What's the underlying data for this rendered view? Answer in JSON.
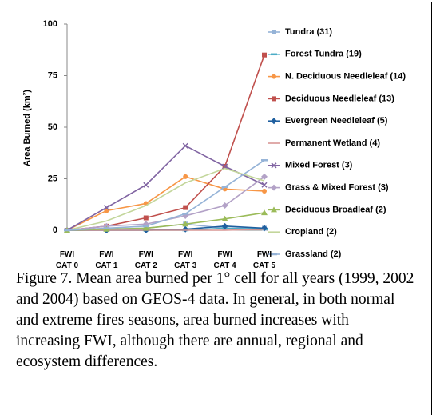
{
  "chart_data": {
    "type": "line",
    "y_label": "Area Burned (km²)",
    "categories": [
      "FWI\nCAT 0",
      "FWI\nCAT 1",
      "FWI\nCAT 2",
      "FWI\nCAT 3",
      "FWI\nCAT 4",
      "FWI\nCAT 5"
    ],
    "ylim": [
      0,
      100
    ],
    "yticks": [
      0,
      25,
      50,
      75,
      100
    ],
    "grid": false,
    "series": [
      {
        "name": "Tundra (31)",
        "color": "#95b3d7",
        "marker": "square",
        "values": [
          0,
          0.5,
          1,
          3,
          1,
          1
        ]
      },
      {
        "name": "Forest Tundra (19)",
        "color": "#4bacc6",
        "marker": "dash",
        "values": [
          0,
          0,
          0,
          0,
          1,
          0.5
        ]
      },
      {
        "name": "N. Deciduous Needleleaf (14)",
        "color": "#f79646",
        "marker": "circle",
        "values": [
          0,
          9.5,
          13,
          26,
          20,
          19
        ]
      },
      {
        "name": "Deciduous Needleleaf (13)",
        "color": "#c0504d",
        "marker": "square",
        "values": [
          0,
          2,
          6,
          11,
          31,
          85
        ]
      },
      {
        "name": "Evergreen Needleleaf (5)",
        "color": "#1f5f9f",
        "marker": "diamond",
        "values": [
          0,
          0,
          0,
          0.5,
          2,
          1
        ]
      },
      {
        "name": "Permanent Wetland (4)",
        "color": "#d99694",
        "marker": "none",
        "values": [
          0,
          0,
          0,
          0,
          0,
          0.5
        ]
      },
      {
        "name": "Mixed Forest (3)",
        "color": "#8064a2",
        "marker": "x",
        "values": [
          0,
          11,
          22,
          41,
          31,
          22
        ]
      },
      {
        "name": "Grass & Mixed Forest (3)",
        "color": "#b3a2c7",
        "marker": "diamond",
        "values": [
          0,
          2,
          3,
          7,
          12,
          26
        ]
      },
      {
        "name": "Deciduous Broadleaf (2)",
        "color": "#9bbb59",
        "marker": "triangle",
        "values": [
          0,
          0.5,
          1,
          3,
          5.5,
          8.5
        ]
      },
      {
        "name": "Cropland (2)",
        "color": "#c3d69b",
        "marker": "none",
        "values": [
          0,
          4.5,
          12,
          23,
          30,
          24
        ]
      },
      {
        "name": "Grassland (2)",
        "color": "#95b3d7",
        "marker": "dash",
        "values": [
          0,
          1,
          2,
          8,
          21,
          34
        ]
      }
    ],
    "caption": "Figure 7. Mean area burned per 1° cell for all years (1999, 2002 and 2004) based on GEOS-4 data. In general, in both normal and extreme fires seasons, area burned increases with increasing FWI, although there are annual, regional and ecosystem differences."
  }
}
